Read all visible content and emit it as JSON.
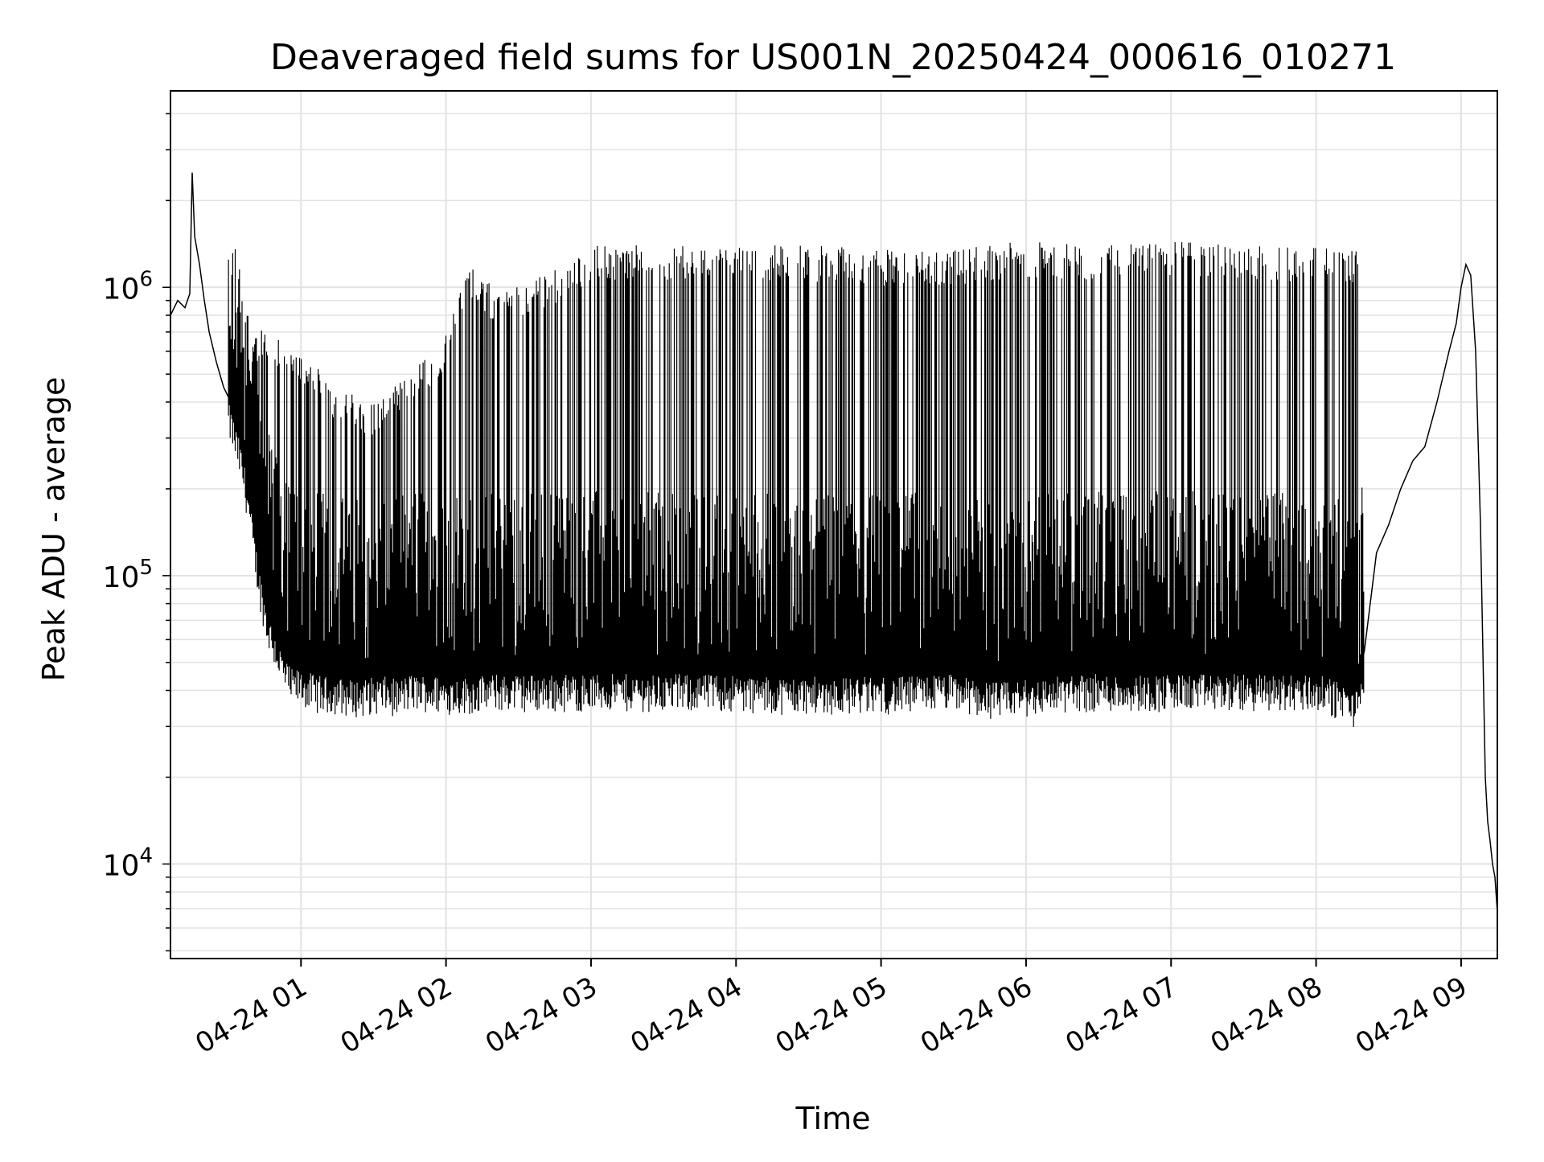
{
  "chart_data": {
    "type": "line",
    "title": "Deaveraged field sums for US001N_20250424_000616_010271",
    "xlabel": "Time",
    "ylabel": "Peak ADU - average",
    "x_start": "04-24 00:06",
    "x_end": "04-24 09:15",
    "xlim": [
      "04-24 00:06",
      "04-24 09:15"
    ],
    "ylim": [
      4700,
      4800000
    ],
    "y_scale": "log",
    "grid": true,
    "line_color": "#000000",
    "grid_color": "#e2e2e2",
    "x_ticks": [
      "04-24 01",
      "04-24 02",
      "04-24 03",
      "04-24 04",
      "04-24 05",
      "04-24 06",
      "04-24 07",
      "04-24 08",
      "04-24 09"
    ],
    "y_ticks": [
      {
        "value": 10000,
        "base": "10",
        "exp": "4"
      },
      {
        "value": 100000,
        "base": "10",
        "exp": "5"
      },
      {
        "value": 1000000,
        "base": "10",
        "exp": "6"
      }
    ],
    "series": [
      {
        "x": [
          "00:06",
          "00:09",
          "00:12",
          "00:14",
          "00:15",
          "00:16",
          "00:18",
          "00:20",
          "00:22",
          "00:25",
          "00:28",
          "00:31",
          "00:35",
          "00:38",
          "00:40",
          "00:43",
          "00:46",
          "00:50",
          "00:53",
          "00:56",
          "01:00",
          "01:05",
          "01:10",
          "01:15",
          "01:20",
          "01:25",
          "01:30",
          "01:35",
          "01:40",
          "01:45",
          "01:50",
          "02:00",
          "02:10",
          "02:20",
          "02:30",
          "02:40",
          "02:50",
          "03:00",
          "03:10",
          "03:20",
          "03:30",
          "03:40",
          "03:50",
          "04:00",
          "04:10",
          "04:20",
          "04:30",
          "04:40",
          "04:50",
          "05:00",
          "05:10",
          "05:20",
          "05:30",
          "05:40",
          "05:50",
          "06:00",
          "06:10",
          "06:20",
          "06:30",
          "06:40",
          "06:50",
          "07:00",
          "07:10",
          "07:20",
          "07:30",
          "07:40",
          "07:50",
          "08:00",
          "08:10",
          "08:17",
          "08:20",
          "08:25",
          "08:30",
          "08:35",
          "08:40",
          "08:45",
          "08:50",
          "08:55",
          "08:58",
          "09:00",
          "09:02",
          "09:04",
          "09:06",
          "09:08",
          "09:10",
          "09:11",
          "09:12",
          "09:13",
          "09:14",
          "09:15"
        ],
        "y": [
          800000,
          900000,
          850000,
          950000,
          2500000,
          1500000,
          1200000,
          900000,
          700000,
          550000,
          450000,
          400000,
          300000,
          220000,
          160000,
          110000,
          80000,
          65000,
          55000,
          50000,
          50000,
          48000,
          47000,
          47000,
          46000,
          46000,
          47000,
          47000,
          46000,
          48000,
          48000,
          47000,
          47000,
          48000,
          48000,
          48000,
          48000,
          48000,
          48000,
          48000,
          48000,
          48000,
          48000,
          48000,
          47000,
          47000,
          47000,
          47000,
          47000,
          47000,
          47000,
          48000,
          48000,
          46000,
          45000,
          46000,
          47000,
          48000,
          48000,
          48000,
          48000,
          48000,
          48000,
          48000,
          48000,
          48000,
          48000,
          48000,
          45000,
          42000,
          55000,
          120000,
          150000,
          200000,
          250000,
          280000,
          400000,
          600000,
          750000,
          1000000,
          1200000,
          1100000,
          600000,
          150000,
          20000,
          14000,
          12000,
          10000,
          9000,
          6800
        ]
      }
    ],
    "spikes": {
      "description_free_values": true,
      "upper_envelope": [
        [
          "00:30",
          800000
        ],
        [
          "00:45",
          700000
        ],
        [
          "01:00",
          600000
        ],
        [
          "01:15",
          450000
        ],
        [
          "01:30",
          400000
        ],
        [
          "01:45",
          500000
        ],
        [
          "02:00",
          700000
        ],
        [
          "02:10",
          1200000
        ],
        [
          "02:20",
          1000000
        ],
        [
          "02:40",
          1100000
        ],
        [
          "03:00",
          1400000
        ],
        [
          "03:30",
          1400000
        ],
        [
          "04:00",
          1400000
        ],
        [
          "04:30",
          1400000
        ],
        [
          "05:00",
          1350000
        ],
        [
          "05:30",
          1350000
        ],
        [
          "06:00",
          1450000
        ],
        [
          "06:30",
          1400000
        ],
        [
          "07:00",
          1450000
        ],
        [
          "07:30",
          1400000
        ],
        [
          "08:00",
          1400000
        ],
        [
          "08:20",
          1350000
        ]
      ]
    }
  }
}
